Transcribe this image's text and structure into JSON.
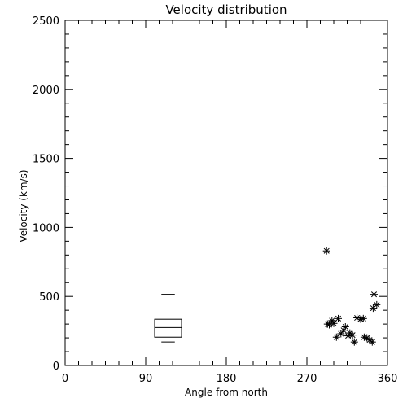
{
  "chart_data": {
    "type": "scatter",
    "title": "Velocity distribution",
    "xlabel": "Angle from north",
    "ylabel": "Velocity (km/s)",
    "xlim": [
      0,
      360
    ],
    "ylim": [
      0,
      2500
    ],
    "x_ticks": [
      0,
      90,
      180,
      270,
      360
    ],
    "y_ticks": [
      0,
      500,
      1000,
      1500,
      2000,
      2500
    ],
    "x_tick_labels": [
      "0",
      "90",
      "180",
      "270",
      "360"
    ],
    "y_tick_labels": [
      "0",
      "500",
      "1000",
      "1500",
      "2000",
      "2500"
    ],
    "grid": false,
    "legend": "none",
    "boxplot": {
      "x": 115,
      "width": 30,
      "min": 170,
      "q1": 205,
      "median": 275,
      "q3": 335,
      "max": 515
    },
    "points": [
      {
        "x": 292,
        "y": 830
      },
      {
        "x": 293,
        "y": 300
      },
      {
        "x": 295,
        "y": 295
      },
      {
        "x": 298,
        "y": 325
      },
      {
        "x": 300,
        "y": 305
      },
      {
        "x": 303,
        "y": 205
      },
      {
        "x": 305,
        "y": 340
      },
      {
        "x": 308,
        "y": 230
      },
      {
        "x": 311,
        "y": 255
      },
      {
        "x": 313,
        "y": 280
      },
      {
        "x": 316,
        "y": 215
      },
      {
        "x": 318,
        "y": 235
      },
      {
        "x": 321,
        "y": 220
      },
      {
        "x": 323,
        "y": 170
      },
      {
        "x": 326,
        "y": 345
      },
      {
        "x": 330,
        "y": 335
      },
      {
        "x": 333,
        "y": 340
      },
      {
        "x": 334,
        "y": 205
      },
      {
        "x": 337,
        "y": 200
      },
      {
        "x": 340,
        "y": 185
      },
      {
        "x": 343,
        "y": 170
      },
      {
        "x": 344,
        "y": 415
      },
      {
        "x": 345,
        "y": 515
      },
      {
        "x": 348,
        "y": 440
      }
    ]
  }
}
